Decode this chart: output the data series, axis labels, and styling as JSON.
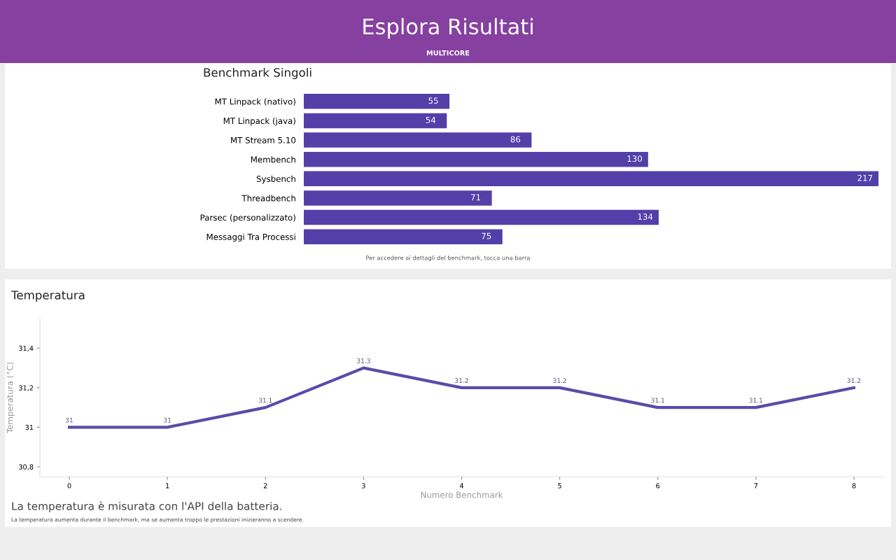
{
  "chart_data": [
    {
      "type": "other",
      "title": "Esplora Risultati",
      "subtitle": "MULTICORE"
    },
    {
      "type": "bar",
      "title": "Benchmark Singoli",
      "orientation": "horizontal",
      "categories": [
        "MT Linpack (nativo)",
        "MT Linpack (java)",
        "MT Stream 5.10",
        "Membench",
        "Sysbench",
        "Threadbench",
        "Parsec (personalizzato)",
        "Messaggi Tra Processi"
      ],
      "values": [
        55,
        54,
        86,
        130,
        217,
        71,
        134,
        75
      ],
      "color": "#5240a8",
      "xlim": [
        0,
        217
      ],
      "data_labels": true,
      "tick_labels": "y",
      "grid": false,
      "legend": false,
      "annotations": [
        "Per accedere ai dettagli del benchmark, tocca una barra"
      ]
    },
    {
      "type": "line",
      "title": "Temperatura",
      "x": [
        0,
        1,
        2,
        3,
        4,
        5,
        6,
        7,
        8
      ],
      "values": [
        31,
        31,
        31.1,
        31.3,
        31.2,
        31.2,
        31.1,
        31.1,
        31.2
      ],
      "color": "#5a4ca8",
      "xlabel": "Numero Benchmark",
      "ylabel": "Temperatura (°C)",
      "xlim": [
        -0.3,
        8.3
      ],
      "ylim": [
        30.75,
        31.55
      ],
      "xticks": [
        0,
        1,
        2,
        3,
        4,
        5,
        6,
        7,
        8
      ],
      "yticks": [
        {
          "value": 30.8,
          "label": "30,8"
        },
        {
          "value": 31,
          "label": "31"
        },
        {
          "value": 31.2,
          "label": "31,2"
        },
        {
          "value": 31.4,
          "label": "31,4"
        }
      ],
      "data_labels": true,
      "grid": false,
      "legend": false,
      "marker": "none",
      "line_style": "solid",
      "annotations": [
        "La temperatura è misurata con l'API della batteria.",
        "La temperatura aumenta durante il benchmark, ma se aumenta troppo le prestazioni inizieranno a scendere."
      ]
    }
  ]
}
